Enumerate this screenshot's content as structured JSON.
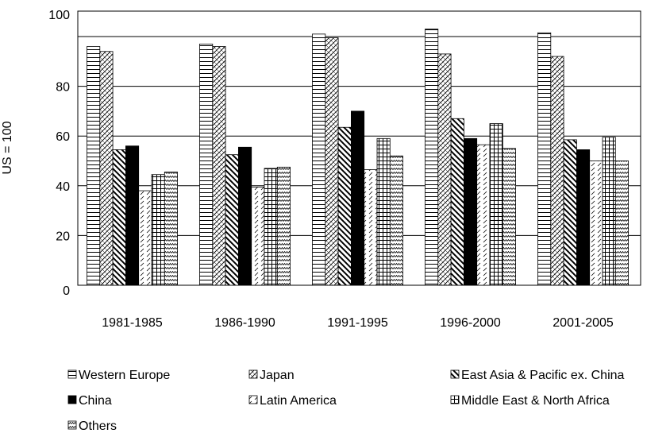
{
  "chart_data": {
    "type": "bar",
    "title": "",
    "xlabel": "",
    "ylabel": "US = 100",
    "ylim": [
      0,
      100
    ],
    "yticks": [
      0,
      20,
      40,
      60,
      80,
      100
    ],
    "grid": true,
    "legend_position": "bottom",
    "reference_line": 100,
    "categories": [
      "1981-1985",
      "1986-1990",
      "1991-1995",
      "1996-2000",
      "2001-2005"
    ],
    "series": [
      {
        "name": "Western Europe",
        "pattern": "horizontal-lines",
        "values": [
          96,
          97,
          101,
          103,
          101.5
        ]
      },
      {
        "name": "Japan",
        "pattern": "crosshatch",
        "values": [
          94,
          96,
          99.5,
          93,
          92
        ]
      },
      {
        "name": "East Asia & Pacific ex. China",
        "pattern": "diagonal-stripes",
        "values": [
          54.5,
          52.5,
          63.5,
          67,
          58.5
        ]
      },
      {
        "name": "China",
        "pattern": "solid",
        "values": [
          56,
          55.5,
          70,
          59,
          54.5
        ]
      },
      {
        "name": "Latin America",
        "pattern": "dashes",
        "values": [
          38,
          39.5,
          46.5,
          56.5,
          50
        ]
      },
      {
        "name": "Middle East & North Africa",
        "pattern": "grid",
        "values": [
          44.5,
          47,
          59,
          65,
          59.5
        ]
      },
      {
        "name": "Others",
        "pattern": "zigzag",
        "values": [
          45.5,
          47.5,
          52,
          55,
          50
        ]
      }
    ]
  }
}
